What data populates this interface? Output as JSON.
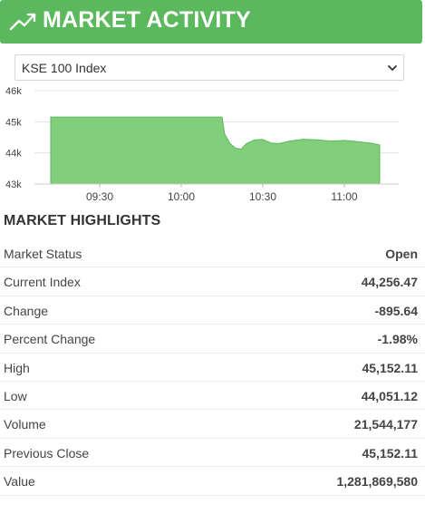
{
  "header": {
    "title": "MARKET ACTIVITY",
    "icon": "trend-up-icon",
    "color": "#5cb85c"
  },
  "selector": {
    "value": "KSE 100 Index",
    "icon": "chevron-down-icon"
  },
  "chart_data": {
    "type": "area",
    "title": "",
    "xlabel": "",
    "ylabel": "",
    "x_ticks": [
      "09:30",
      "10:00",
      "10:30",
      "11:00"
    ],
    "y_ticks": [
      "43k",
      "44k",
      "45k",
      "46k"
    ],
    "ylim": [
      43000,
      46000
    ],
    "grid": true,
    "color": "#7ccb74",
    "series": [
      {
        "x": [
          "09:12",
          "10:15",
          "10:16",
          "10:18",
          "10:20",
          "10:22",
          "10:24",
          "10:27",
          "10:30",
          "10:33",
          "10:36",
          "10:40",
          "10:45",
          "10:50",
          "10:55",
          "11:00",
          "11:05",
          "11:10",
          "11:13"
        ],
        "values": [
          45152,
          45152,
          44600,
          44300,
          44150,
          44120,
          44300,
          44420,
          44430,
          44320,
          44300,
          44380,
          44440,
          44420,
          44380,
          44400,
          44360,
          44310,
          44256
        ]
      }
    ]
  },
  "highlights": {
    "title": "MARKET HIGHLIGHTS",
    "rows": [
      {
        "label": "Market Status",
        "value": "Open"
      },
      {
        "label": "Current Index",
        "value": "44,256.47"
      },
      {
        "label": "Change",
        "value": "-895.64"
      },
      {
        "label": "Percent Change",
        "value": "-1.98%"
      },
      {
        "label": "High",
        "value": "45,152.11"
      },
      {
        "label": "Low",
        "value": "44,051.12"
      },
      {
        "label": "Volume",
        "value": "21,544,177"
      },
      {
        "label": "Previous Close",
        "value": "45,152.11"
      },
      {
        "label": "Value",
        "value": "1,281,869,580"
      }
    ]
  }
}
